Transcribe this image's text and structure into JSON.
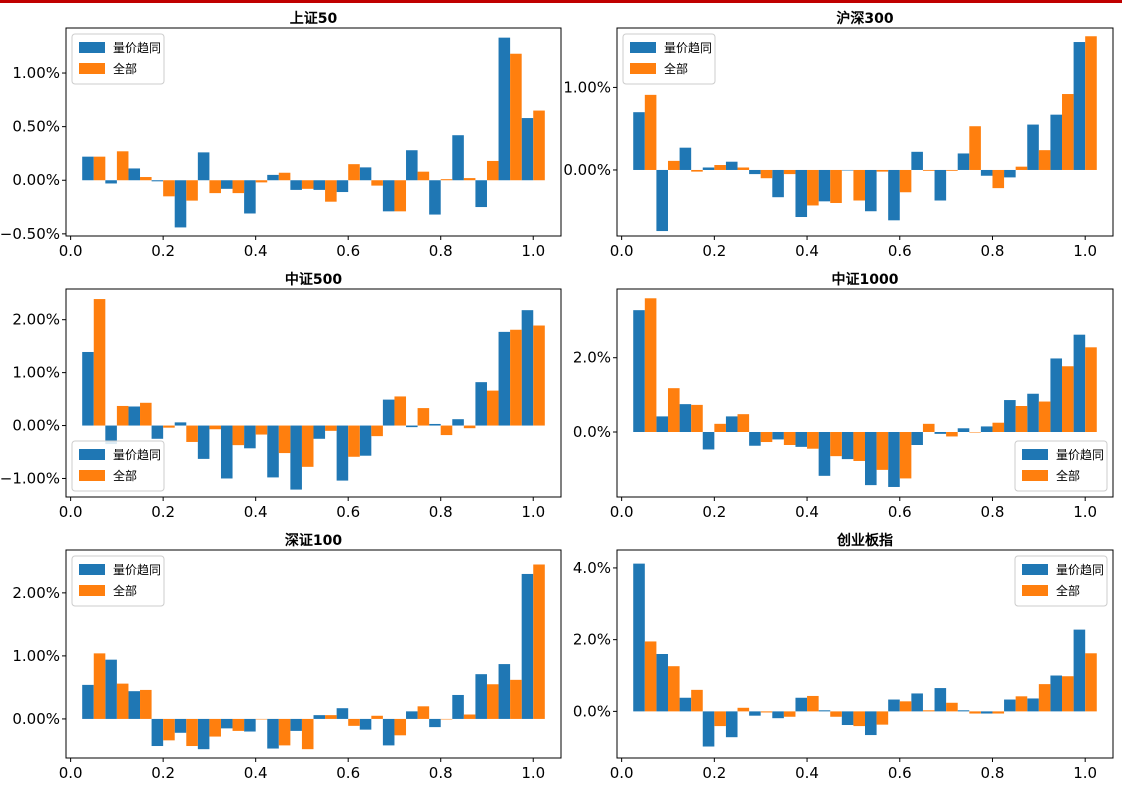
{
  "colors": {
    "series1": "#1f77b4",
    "series2": "#ff7f0e",
    "accent": "#c00000"
  },
  "chart_data": [
    {
      "type": "bar",
      "title": "上证50",
      "xlim": [
        -0.01,
        1.06
      ],
      "ylim": [
        -0.52,
        1.42
      ],
      "xticks": [
        0.0,
        0.2,
        0.4,
        0.6,
        0.8,
        1.0
      ],
      "xtick_labels": [
        "0.0",
        "0.2",
        "0.4",
        "0.6",
        "0.8",
        "1.0"
      ],
      "yticks": [
        -0.5,
        0.0,
        0.5,
        1.0
      ],
      "ytick_labels": [
        "−0.50%",
        "0.00%",
        "0.50%",
        "1.00%"
      ],
      "legend_position": "upper-left",
      "x": [
        0.05,
        0.1,
        0.15,
        0.2,
        0.25,
        0.3,
        0.35,
        0.4,
        0.45,
        0.5,
        0.55,
        0.6,
        0.65,
        0.7,
        0.75,
        0.8,
        0.85,
        0.9,
        0.95,
        1.0
      ],
      "series": [
        {
          "name": "量价趋同",
          "values": [
            0.22,
            -0.03,
            0.11,
            -0.01,
            -0.44,
            0.26,
            -0.08,
            -0.31,
            0.05,
            -0.09,
            -0.09,
            -0.11,
            0.12,
            -0.29,
            0.28,
            -0.32,
            0.42,
            -0.25,
            1.33,
            0.58
          ]
        },
        {
          "name": "全部",
          "values": [
            0.22,
            0.27,
            0.03,
            -0.15,
            -0.19,
            -0.12,
            -0.12,
            -0.02,
            0.07,
            -0.08,
            -0.2,
            0.15,
            -0.05,
            -0.29,
            0.08,
            0.01,
            0.02,
            0.18,
            1.18,
            0.65
          ]
        }
      ]
    },
    {
      "type": "bar",
      "title": "沪深300",
      "xlim": [
        -0.01,
        1.06
      ],
      "ylim": [
        -0.8,
        1.72
      ],
      "xticks": [
        0.0,
        0.2,
        0.4,
        0.6,
        0.8,
        1.0
      ],
      "xtick_labels": [
        "0.0",
        "0.2",
        "0.4",
        "0.6",
        "0.8",
        "1.0"
      ],
      "yticks": [
        0.0,
        1.0
      ],
      "ytick_labels": [
        "0.00%",
        "1.00%"
      ],
      "legend_position": "upper-left",
      "x": [
        0.05,
        0.1,
        0.15,
        0.2,
        0.25,
        0.3,
        0.35,
        0.4,
        0.45,
        0.5,
        0.55,
        0.6,
        0.65,
        0.7,
        0.75,
        0.8,
        0.85,
        0.9,
        0.95,
        1.0
      ],
      "series": [
        {
          "name": "量价趋同",
          "values": [
            0.7,
            -0.74,
            0.27,
            0.03,
            0.1,
            -0.05,
            -0.33,
            -0.57,
            -0.38,
            0.0,
            -0.5,
            -0.61,
            0.22,
            -0.37,
            0.2,
            -0.07,
            -0.09,
            0.55,
            0.67,
            1.55
          ]
        },
        {
          "name": "全部",
          "values": [
            0.91,
            0.11,
            -0.02,
            0.06,
            0.03,
            -0.1,
            -0.05,
            -0.43,
            -0.4,
            -0.37,
            -0.02,
            -0.27,
            -0.01,
            -0.01,
            0.53,
            -0.22,
            0.04,
            0.24,
            0.92,
            1.62
          ]
        }
      ]
    },
    {
      "type": "bar",
      "title": "中证500",
      "xlim": [
        -0.01,
        1.06
      ],
      "ylim": [
        -1.35,
        2.58
      ],
      "xticks": [
        0.0,
        0.2,
        0.4,
        0.6,
        0.8,
        1.0
      ],
      "xtick_labels": [
        "0.0",
        "0.2",
        "0.4",
        "0.6",
        "0.8",
        "1.0"
      ],
      "yticks": [
        -1.0,
        0.0,
        1.0,
        2.0
      ],
      "ytick_labels": [
        "−1.00%",
        "0.00%",
        "1.00%",
        "2.00%"
      ],
      "legend_position": "lower-left",
      "x": [
        0.05,
        0.1,
        0.15,
        0.2,
        0.25,
        0.3,
        0.35,
        0.4,
        0.45,
        0.5,
        0.55,
        0.6,
        0.65,
        0.7,
        0.75,
        0.8,
        0.85,
        0.9,
        0.95,
        1.0
      ],
      "series": [
        {
          "name": "量价趋同",
          "values": [
            1.39,
            -0.35,
            0.36,
            -0.25,
            0.06,
            -0.63,
            -1.0,
            -0.43,
            -0.98,
            -1.21,
            -0.25,
            -1.04,
            -0.57,
            0.49,
            -0.03,
            0.03,
            0.12,
            0.82,
            1.77,
            2.18
          ]
        },
        {
          "name": "全部",
          "values": [
            2.39,
            0.37,
            0.43,
            -0.04,
            -0.31,
            -0.07,
            -0.37,
            -0.17,
            -0.52,
            -0.78,
            -0.1,
            -0.59,
            -0.2,
            0.55,
            0.33,
            -0.18,
            -0.05,
            0.66,
            1.81,
            1.89
          ]
        }
      ]
    },
    {
      "type": "bar",
      "title": "中证1000",
      "xlim": [
        -0.01,
        1.06
      ],
      "ylim": [
        -1.75,
        3.85
      ],
      "xticks": [
        0.0,
        0.2,
        0.4,
        0.6,
        0.8,
        1.0
      ],
      "xtick_labels": [
        "0.0",
        "0.2",
        "0.4",
        "0.6",
        "0.8",
        "1.0"
      ],
      "yticks": [
        0.0,
        2.0
      ],
      "ytick_labels": [
        "0.0%",
        "2.0%"
      ],
      "legend_position": "lower-right",
      "x": [
        0.05,
        0.1,
        0.15,
        0.2,
        0.25,
        0.3,
        0.35,
        0.4,
        0.45,
        0.5,
        0.55,
        0.6,
        0.65,
        0.7,
        0.75,
        0.8,
        0.85,
        0.9,
        0.95,
        1.0
      ],
      "series": [
        {
          "name": "量价趋同",
          "values": [
            3.28,
            0.42,
            0.75,
            -0.47,
            0.42,
            -0.37,
            -0.2,
            -0.4,
            -1.18,
            -0.73,
            -1.43,
            -1.48,
            -0.35,
            -0.05,
            0.1,
            0.15,
            0.86,
            1.03,
            1.98,
            2.62
          ]
        },
        {
          "name": "全部",
          "values": [
            3.6,
            1.18,
            0.73,
            0.22,
            0.48,
            -0.27,
            -0.35,
            -0.45,
            -0.65,
            -0.78,
            -1.02,
            -1.25,
            0.22,
            -0.12,
            0.0,
            0.25,
            0.7,
            0.82,
            1.77,
            2.28
          ]
        }
      ]
    },
    {
      "type": "bar",
      "title": "深证100",
      "xlim": [
        -0.01,
        1.06
      ],
      "ylim": [
        -0.62,
        2.68
      ],
      "xticks": [
        0.0,
        0.2,
        0.4,
        0.6,
        0.8,
        1.0
      ],
      "xtick_labels": [
        "0.0",
        "0.2",
        "0.4",
        "0.6",
        "0.8",
        "1.0"
      ],
      "yticks": [
        0.0,
        1.0,
        2.0
      ],
      "ytick_labels": [
        "0.00%",
        "1.00%",
        "2.00%"
      ],
      "legend_position": "upper-left",
      "x": [
        0.05,
        0.1,
        0.15,
        0.2,
        0.25,
        0.3,
        0.35,
        0.4,
        0.45,
        0.5,
        0.55,
        0.6,
        0.65,
        0.7,
        0.75,
        0.8,
        0.85,
        0.9,
        0.95,
        1.0
      ],
      "series": [
        {
          "name": "量价趋同",
          "values": [
            0.54,
            0.94,
            0.44,
            -0.43,
            -0.22,
            -0.48,
            -0.15,
            -0.2,
            -0.47,
            -0.19,
            0.06,
            0.17,
            -0.17,
            -0.42,
            0.12,
            -0.13,
            0.38,
            0.71,
            0.87,
            2.3
          ]
        },
        {
          "name": "全部",
          "values": [
            1.04,
            0.56,
            0.46,
            -0.34,
            -0.43,
            -0.28,
            -0.19,
            0.0,
            -0.42,
            -0.48,
            0.06,
            -0.11,
            0.05,
            -0.26,
            0.2,
            0.0,
            0.07,
            0.55,
            0.62,
            2.45
          ]
        }
      ]
    },
    {
      "type": "bar",
      "title": "创业板指",
      "xlim": [
        -0.01,
        1.06
      ],
      "ylim": [
        -1.3,
        4.5
      ],
      "xticks": [
        0.0,
        0.2,
        0.4,
        0.6,
        0.8,
        1.0
      ],
      "xtick_labels": [
        "0.0",
        "0.2",
        "0.4",
        "0.6",
        "0.8",
        "1.0"
      ],
      "yticks": [
        0.0,
        2.0,
        4.0
      ],
      "ytick_labels": [
        "0.0%",
        "2.0%",
        "4.0%"
      ],
      "legend_position": "upper-right",
      "x": [
        0.05,
        0.1,
        0.15,
        0.2,
        0.25,
        0.3,
        0.35,
        0.4,
        0.45,
        0.5,
        0.55,
        0.6,
        0.65,
        0.7,
        0.75,
        0.8,
        0.85,
        0.9,
        0.95,
        1.0
      ],
      "series": [
        {
          "name": "量价趋同",
          "values": [
            4.12,
            1.6,
            0.38,
            -0.98,
            -0.72,
            -0.12,
            -0.19,
            0.38,
            0.03,
            -0.38,
            -0.66,
            0.33,
            0.5,
            0.65,
            0.03,
            -0.06,
            0.33,
            0.36,
            1.0,
            2.28
          ]
        },
        {
          "name": "全部",
          "values": [
            1.95,
            1.26,
            0.6,
            -0.41,
            0.1,
            -0.03,
            -0.15,
            0.43,
            -0.15,
            -0.41,
            -0.37,
            0.28,
            0.03,
            0.24,
            -0.06,
            -0.06,
            0.42,
            0.76,
            0.98,
            1.62
          ]
        }
      ]
    }
  ]
}
